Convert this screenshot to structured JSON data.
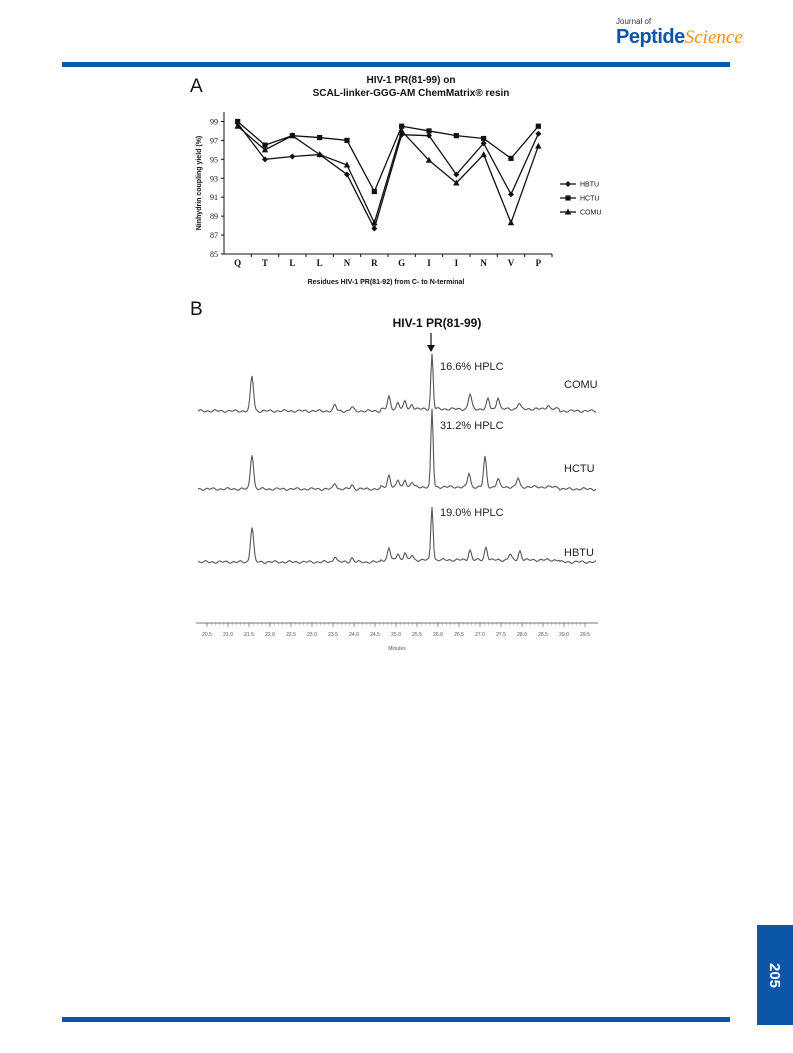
{
  "header": {
    "journal_of": "Journal of",
    "journal_name_part1": "Peptide",
    "journal_name_part2": "Science",
    "brand_color": "#0b56a8",
    "accent_color": "#f28c1c"
  },
  "page_number": "205",
  "panels": {
    "a_label": "A",
    "b_label": "B"
  },
  "chart_data": [
    {
      "type": "line",
      "title": "HIV-1 PR(81-99) on",
      "subtitle": "SCAL-linker-GGG-AM ChemMatrix® resin",
      "xlabel": "Residues HIV-1 PR(81-92) from C- to N-terminal",
      "ylabel": "Ninhydrin coupling yield (%)",
      "categories": [
        "Q",
        "T",
        "L",
        "L",
        "N",
        "R",
        "G",
        "I",
        "I",
        "N",
        "V",
        "P"
      ],
      "ylim": [
        85,
        100
      ],
      "yticks": [
        "85",
        "87",
        "89",
        "91",
        "93",
        "95",
        "97",
        "99"
      ],
      "legend_position": "right",
      "series": [
        {
          "name": "HBTU",
          "marker": "diamond",
          "values": [
            98.8,
            95.0,
            95.3,
            95.5,
            93.4,
            87.7,
            97.6,
            97.5,
            93.4,
            96.7,
            91.3,
            97.7
          ]
        },
        {
          "name": "HCTU",
          "marker": "square",
          "values": [
            99.0,
            96.5,
            97.5,
            97.3,
            97.0,
            91.6,
            98.5,
            98.0,
            97.5,
            97.2,
            95.1,
            98.5
          ]
        },
        {
          "name": "COMU",
          "marker": "triangle",
          "values": [
            98.5,
            96.0,
            97.5,
            95.5,
            94.4,
            88.3,
            98.0,
            94.9,
            92.5,
            95.5,
            88.3,
            96.4
          ]
        }
      ]
    },
    {
      "type": "line",
      "title": "HIV-1 PR(81-99)",
      "xlabel": "Minutes",
      "series": [
        {
          "name": "COMU",
          "annotation": "16.6% HPLC"
        },
        {
          "name": "HCTU",
          "annotation": "31.2% HPLC"
        },
        {
          "name": "HBTU",
          "annotation": "19.0% HPLC"
        }
      ],
      "x_tick_labels": [
        "20.5",
        "21.0",
        "21.5",
        "22.0",
        "22.5",
        "23.0",
        "23.5",
        "24.0",
        "24.5",
        "25.0",
        "25.5",
        "26.0",
        "26.5",
        "27.0",
        "27.5",
        "28.0",
        "28.5",
        "29.0",
        "29.5"
      ]
    }
  ]
}
